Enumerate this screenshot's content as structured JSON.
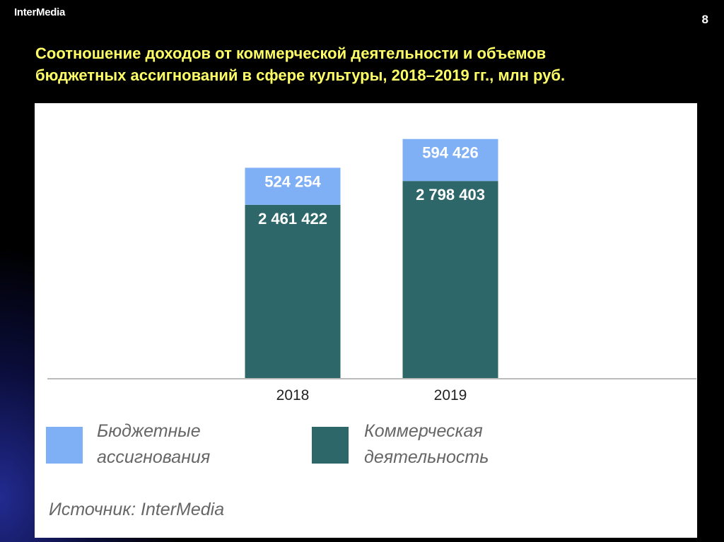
{
  "header": {
    "logo": "InterMedia",
    "page_number": "8"
  },
  "title_line1": "Соотношение доходов от коммерческой деятельности и объемов",
  "title_line2": "бюджетных ассигнований в сфере культуры, 2018–2019 гг., млн руб.",
  "chart_data": {
    "type": "bar",
    "stacked": true,
    "categories": [
      "2018",
      "2019"
    ],
    "series": [
      {
        "name": "Коммерческая деятельность",
        "values": [
          2461422,
          2798403
        ],
        "labels": [
          "2 461 422",
          "2 798 403"
        ],
        "color": "#2e6769"
      },
      {
        "name": "Бюджетные ассигнования",
        "values": [
          524254,
          594426
        ],
        "labels": [
          "524 254",
          "594 426"
        ],
        "color": "#7fb0f5"
      }
    ],
    "ylim": [
      0,
      3500000
    ],
    "grid": false,
    "legend_position": "bottom"
  },
  "legend": {
    "budget_line1": "Бюджетные",
    "budget_line2": "ассигнования",
    "commercial_line1": "Коммерческая",
    "commercial_line2": "деятельность"
  },
  "source": "Источник: InterMedia",
  "colors": {
    "title": "#ffff66",
    "budget": "#7fb0f5",
    "commercial": "#2e6769"
  }
}
